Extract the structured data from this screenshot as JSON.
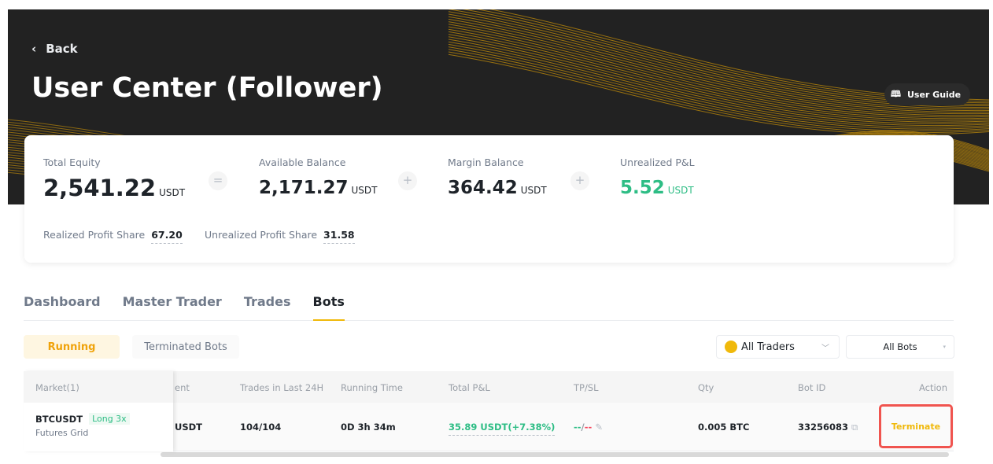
{
  "header": {
    "back_label": "Back",
    "title": "User Center (Follower)",
    "user_guide_label": "User Guide"
  },
  "summary": {
    "total_equity": {
      "label": "Total Equity",
      "value": "2,541.22",
      "unit": "USDT"
    },
    "available_balance": {
      "label": "Available Balance",
      "value": "2,171.27",
      "unit": "USDT"
    },
    "margin_balance": {
      "label": "Margin Balance",
      "value": "364.42",
      "unit": "USDT"
    },
    "unrealized_pnl": {
      "label": "Unrealized P&L",
      "value": "5.52",
      "unit": "USDT"
    },
    "operators": {
      "equals": "=",
      "plus": "+"
    },
    "realized_profit_share": {
      "label": "Realized Profit Share",
      "value": "67.20"
    },
    "unrealized_profit_share": {
      "label": "Unrealized Profit Share",
      "value": "31.58"
    }
  },
  "tabs": [
    {
      "label": "Dashboard"
    },
    {
      "label": "Master Trader"
    },
    {
      "label": "Trades"
    },
    {
      "label": "Bots",
      "active": true
    }
  ],
  "filters": {
    "running": "Running",
    "terminated": "Terminated Bots",
    "traders": "All Traders",
    "bots": "All Bots"
  },
  "table": {
    "columns": {
      "market": "Market(1)",
      "investment_partial": "ent",
      "trades24h": "Trades in Last 24H",
      "running_time": "Running Time",
      "total_pnl": "Total P&L",
      "tpsl": "TP/SL",
      "qty": "Qty",
      "bot_id": "Bot ID",
      "action": "Action"
    },
    "rows": [
      {
        "symbol": "BTCUSDT",
        "tag": "Long 3x",
        "type": "Futures Grid",
        "investment_partial": "USDT",
        "trades24h": "104/104",
        "running_time": "0D 3h 34m",
        "total_pnl": "35.89 USDT(+7.38%)",
        "tp": "--",
        "sep": "/",
        "sl": "--",
        "qty": "0.005 BTC",
        "bot_id": "33256083",
        "action": "Terminate"
      }
    ]
  },
  "colors": {
    "accent": "#f0b90b",
    "positive": "#2ebd85",
    "negative": "#f6465d",
    "highlight": "#f0544f"
  }
}
